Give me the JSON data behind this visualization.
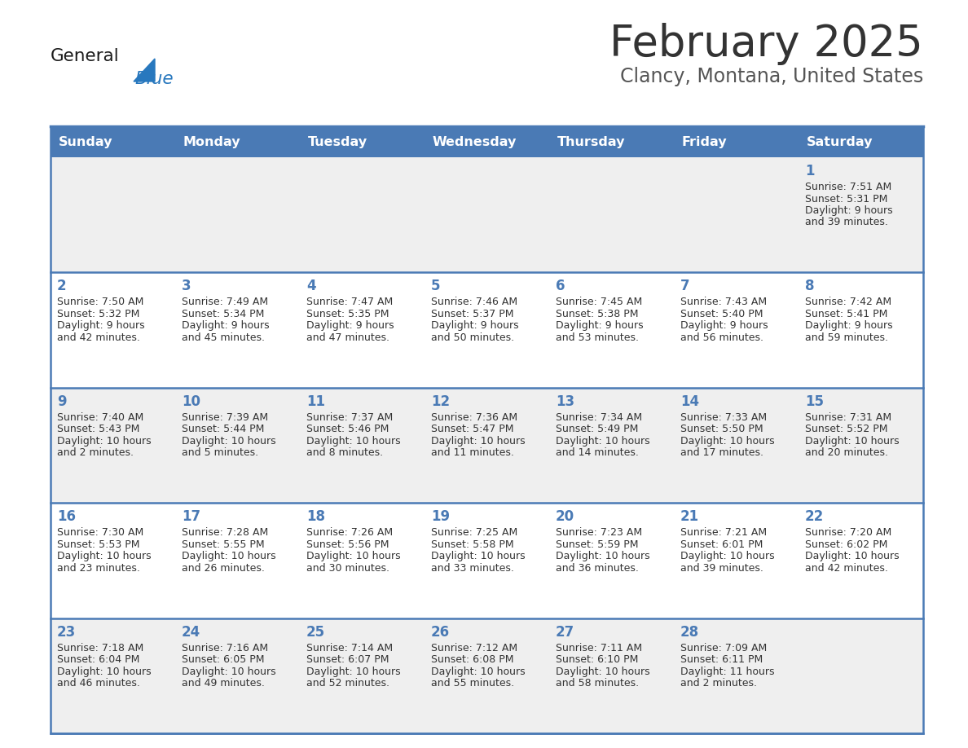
{
  "title": "February 2025",
  "subtitle": "Clancy, Montana, United States",
  "header_bg": "#4a7ab5",
  "header_text_color": "#ffffff",
  "day_names": [
    "Sunday",
    "Monday",
    "Tuesday",
    "Wednesday",
    "Thursday",
    "Friday",
    "Saturday"
  ],
  "row_bg_gray": "#efefef",
  "row_bg_white": "#ffffff",
  "cell_text_color": "#333333",
  "separator_color": "#4a7ab5",
  "title_color": "#333333",
  "subtitle_color": "#555555",
  "logo_general_color": "#1a1a1a",
  "logo_blue_color": "#2878be",
  "row_backgrounds": [
    "#efefef",
    "#ffffff",
    "#efefef",
    "#ffffff",
    "#efefef"
  ],
  "calendar": [
    [
      null,
      null,
      null,
      null,
      null,
      null,
      {
        "day": "1",
        "sunrise": "7:51 AM",
        "sunset": "5:31 PM",
        "daylight": "9 hours",
        "daylight2": "and 39 minutes."
      }
    ],
    [
      {
        "day": "2",
        "sunrise": "7:50 AM",
        "sunset": "5:32 PM",
        "daylight": "9 hours",
        "daylight2": "and 42 minutes."
      },
      {
        "day": "3",
        "sunrise": "7:49 AM",
        "sunset": "5:34 PM",
        "daylight": "9 hours",
        "daylight2": "and 45 minutes."
      },
      {
        "day": "4",
        "sunrise": "7:47 AM",
        "sunset": "5:35 PM",
        "daylight": "9 hours",
        "daylight2": "and 47 minutes."
      },
      {
        "day": "5",
        "sunrise": "7:46 AM",
        "sunset": "5:37 PM",
        "daylight": "9 hours",
        "daylight2": "and 50 minutes."
      },
      {
        "day": "6",
        "sunrise": "7:45 AM",
        "sunset": "5:38 PM",
        "daylight": "9 hours",
        "daylight2": "and 53 minutes."
      },
      {
        "day": "7",
        "sunrise": "7:43 AM",
        "sunset": "5:40 PM",
        "daylight": "9 hours",
        "daylight2": "and 56 minutes."
      },
      {
        "day": "8",
        "sunrise": "7:42 AM",
        "sunset": "5:41 PM",
        "daylight": "9 hours",
        "daylight2": "and 59 minutes."
      }
    ],
    [
      {
        "day": "9",
        "sunrise": "7:40 AM",
        "sunset": "5:43 PM",
        "daylight": "10 hours",
        "daylight2": "and 2 minutes."
      },
      {
        "day": "10",
        "sunrise": "7:39 AM",
        "sunset": "5:44 PM",
        "daylight": "10 hours",
        "daylight2": "and 5 minutes."
      },
      {
        "day": "11",
        "sunrise": "7:37 AM",
        "sunset": "5:46 PM",
        "daylight": "10 hours",
        "daylight2": "and 8 minutes."
      },
      {
        "day": "12",
        "sunrise": "7:36 AM",
        "sunset": "5:47 PM",
        "daylight": "10 hours",
        "daylight2": "and 11 minutes."
      },
      {
        "day": "13",
        "sunrise": "7:34 AM",
        "sunset": "5:49 PM",
        "daylight": "10 hours",
        "daylight2": "and 14 minutes."
      },
      {
        "day": "14",
        "sunrise": "7:33 AM",
        "sunset": "5:50 PM",
        "daylight": "10 hours",
        "daylight2": "and 17 minutes."
      },
      {
        "day": "15",
        "sunrise": "7:31 AM",
        "sunset": "5:52 PM",
        "daylight": "10 hours",
        "daylight2": "and 20 minutes."
      }
    ],
    [
      {
        "day": "16",
        "sunrise": "7:30 AM",
        "sunset": "5:53 PM",
        "daylight": "10 hours",
        "daylight2": "and 23 minutes."
      },
      {
        "day": "17",
        "sunrise": "7:28 AM",
        "sunset": "5:55 PM",
        "daylight": "10 hours",
        "daylight2": "and 26 minutes."
      },
      {
        "day": "18",
        "sunrise": "7:26 AM",
        "sunset": "5:56 PM",
        "daylight": "10 hours",
        "daylight2": "and 30 minutes."
      },
      {
        "day": "19",
        "sunrise": "7:25 AM",
        "sunset": "5:58 PM",
        "daylight": "10 hours",
        "daylight2": "and 33 minutes."
      },
      {
        "day": "20",
        "sunrise": "7:23 AM",
        "sunset": "5:59 PM",
        "daylight": "10 hours",
        "daylight2": "and 36 minutes."
      },
      {
        "day": "21",
        "sunrise": "7:21 AM",
        "sunset": "6:01 PM",
        "daylight": "10 hours",
        "daylight2": "and 39 minutes."
      },
      {
        "day": "22",
        "sunrise": "7:20 AM",
        "sunset": "6:02 PM",
        "daylight": "10 hours",
        "daylight2": "and 42 minutes."
      }
    ],
    [
      {
        "day": "23",
        "sunrise": "7:18 AM",
        "sunset": "6:04 PM",
        "daylight": "10 hours",
        "daylight2": "and 46 minutes."
      },
      {
        "day": "24",
        "sunrise": "7:16 AM",
        "sunset": "6:05 PM",
        "daylight": "10 hours",
        "daylight2": "and 49 minutes."
      },
      {
        "day": "25",
        "sunrise": "7:14 AM",
        "sunset": "6:07 PM",
        "daylight": "10 hours",
        "daylight2": "and 52 minutes."
      },
      {
        "day": "26",
        "sunrise": "7:12 AM",
        "sunset": "6:08 PM",
        "daylight": "10 hours",
        "daylight2": "and 55 minutes."
      },
      {
        "day": "27",
        "sunrise": "7:11 AM",
        "sunset": "6:10 PM",
        "daylight": "10 hours",
        "daylight2": "and 58 minutes."
      },
      {
        "day": "28",
        "sunrise": "7:09 AM",
        "sunset": "6:11 PM",
        "daylight": "11 hours",
        "daylight2": "and 2 minutes."
      },
      null
    ]
  ]
}
